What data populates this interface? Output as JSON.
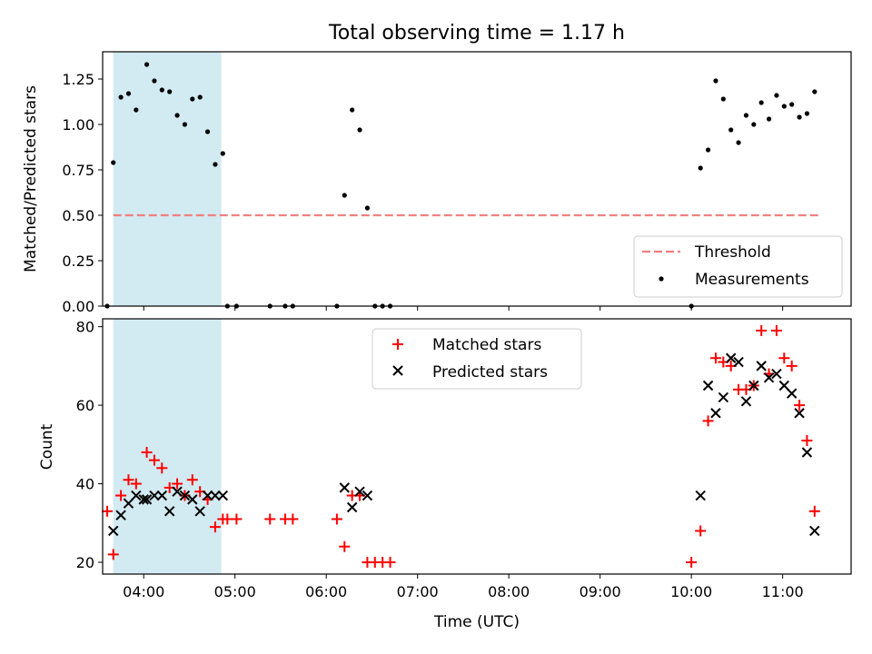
{
  "title": "Total observing time = 1.17 h",
  "chart_data": [
    {
      "type": "scatter",
      "ylabel": "Matched/Predicted stars",
      "xlabel": "",
      "xlim": [
        "03:33",
        "11:45"
      ],
      "ylim": [
        0,
        1.4
      ],
      "yticks": [
        0,
        0.25,
        0.5,
        0.75,
        1.0,
        1.25
      ],
      "ytick_labels": [
        "0.00",
        "0.25",
        "0.50",
        "0.75",
        "1.00",
        "1.25"
      ],
      "shaded_interval": [
        "03:40",
        "04:51"
      ],
      "threshold": {
        "value": 0.5,
        "x_range": [
          "03:40",
          "11:24"
        ]
      },
      "legend": {
        "position": "lower right",
        "entries": [
          "Threshold",
          "Measurements"
        ]
      },
      "series": [
        {
          "name": "Measurements",
          "marker": "dot",
          "color": "#000000",
          "points": [
            [
              "03:36",
              0.0
            ],
            [
              "03:40",
              0.79
            ],
            [
              "03:45",
              1.15
            ],
            [
              "03:50",
              1.17
            ],
            [
              "03:55",
              1.08
            ],
            [
              "04:02",
              1.33
            ],
            [
              "04:07",
              1.24
            ],
            [
              "04:12",
              1.19
            ],
            [
              "04:17",
              1.18
            ],
            [
              "04:22",
              1.05
            ],
            [
              "04:27",
              1.0
            ],
            [
              "04:32",
              1.14
            ],
            [
              "04:37",
              1.15
            ],
            [
              "04:42",
              0.96
            ],
            [
              "04:47",
              0.78
            ],
            [
              "04:52",
              0.84
            ],
            [
              "04:55",
              0.0
            ],
            [
              "05:01",
              0.0
            ],
            [
              "05:23",
              0.0
            ],
            [
              "05:33",
              0.0
            ],
            [
              "05:38",
              0.0
            ],
            [
              "06:07",
              0.0
            ],
            [
              "06:12",
              0.61
            ],
            [
              "06:17",
              1.08
            ],
            [
              "06:22",
              0.97
            ],
            [
              "06:27",
              0.54
            ],
            [
              "06:32",
              0.0
            ],
            [
              "06:37",
              0.0
            ],
            [
              "06:42",
              0.0
            ],
            [
              "10:00",
              0.0
            ],
            [
              "10:06",
              0.76
            ],
            [
              "10:11",
              0.86
            ],
            [
              "10:16",
              1.24
            ],
            [
              "10:21",
              1.14
            ],
            [
              "10:26",
              0.97
            ],
            [
              "10:31",
              0.9
            ],
            [
              "10:36",
              1.05
            ],
            [
              "10:41",
              1.0
            ],
            [
              "10:46",
              1.12
            ],
            [
              "10:51",
              1.03
            ],
            [
              "10:56",
              1.16
            ],
            [
              "11:01",
              1.1
            ],
            [
              "11:06",
              1.11
            ],
            [
              "11:11",
              1.04
            ],
            [
              "11:16",
              1.06
            ],
            [
              "11:21",
              1.18
            ]
          ]
        }
      ]
    },
    {
      "type": "scatter",
      "ylabel": "Count",
      "xlabel": "Time (UTC)",
      "xlim": [
        "03:33",
        "11:45"
      ],
      "ylim": [
        17,
        82
      ],
      "yticks": [
        20,
        40,
        60,
        80
      ],
      "xticks": [
        "04:00",
        "05:00",
        "06:00",
        "07:00",
        "08:00",
        "09:00",
        "10:00",
        "11:00"
      ],
      "shaded_interval": [
        "03:40",
        "04:51"
      ],
      "legend": {
        "position": "upper center",
        "entries": [
          "Matched stars",
          "Predicted stars"
        ]
      },
      "series": [
        {
          "name": "Matched stars",
          "marker": "plus",
          "color": "#ff0000",
          "points": [
            [
              "03:36",
              33
            ],
            [
              "03:40",
              22
            ],
            [
              "03:45",
              37
            ],
            [
              "03:50",
              41
            ],
            [
              "03:55",
              40
            ],
            [
              "04:02",
              48
            ],
            [
              "04:07",
              46
            ],
            [
              "04:12",
              44
            ],
            [
              "04:17",
              39
            ],
            [
              "04:22",
              40
            ],
            [
              "04:27",
              37
            ],
            [
              "04:32",
              41
            ],
            [
              "04:37",
              38
            ],
            [
              "04:42",
              36
            ],
            [
              "04:47",
              29
            ],
            [
              "04:52",
              31
            ],
            [
              "04:55",
              31
            ],
            [
              "05:01",
              31
            ],
            [
              "05:23",
              31
            ],
            [
              "05:33",
              31
            ],
            [
              "05:38",
              31
            ],
            [
              "06:07",
              31
            ],
            [
              "06:12",
              24
            ],
            [
              "06:17",
              37
            ],
            [
              "06:22",
              37
            ],
            [
              "06:27",
              20
            ],
            [
              "06:32",
              20
            ],
            [
              "06:37",
              20
            ],
            [
              "06:42",
              20
            ],
            [
              "10:00",
              20
            ],
            [
              "10:06",
              28
            ],
            [
              "10:11",
              56
            ],
            [
              "10:16",
              72
            ],
            [
              "10:21",
              71
            ],
            [
              "10:26",
              70
            ],
            [
              "10:31",
              64
            ],
            [
              "10:36",
              64
            ],
            [
              "10:41",
              65
            ],
            [
              "10:46",
              79
            ],
            [
              "10:51",
              68
            ],
            [
              "10:56",
              79
            ],
            [
              "11:01",
              72
            ],
            [
              "11:06",
              70
            ],
            [
              "11:11",
              60
            ],
            [
              "11:16",
              51
            ],
            [
              "11:21",
              33
            ]
          ]
        },
        {
          "name": "Predicted stars",
          "marker": "x",
          "color": "#000000",
          "points": [
            [
              "03:40",
              28
            ],
            [
              "03:45",
              32
            ],
            [
              "03:50",
              35
            ],
            [
              "03:55",
              37
            ],
            [
              "04:00",
              36
            ],
            [
              "04:02",
              36
            ],
            [
              "04:07",
              37
            ],
            [
              "04:12",
              37
            ],
            [
              "04:17",
              33
            ],
            [
              "04:22",
              38
            ],
            [
              "04:27",
              37
            ],
            [
              "04:32",
              36
            ],
            [
              "04:37",
              33
            ],
            [
              "04:42",
              37
            ],
            [
              "04:47",
              37
            ],
            [
              "04:52",
              37
            ],
            [
              "06:12",
              39
            ],
            [
              "06:17",
              34
            ],
            [
              "06:22",
              38
            ],
            [
              "06:27",
              37
            ],
            [
              "10:06",
              37
            ],
            [
              "10:11",
              65
            ],
            [
              "10:16",
              58
            ],
            [
              "10:21",
              62
            ],
            [
              "10:26",
              72
            ],
            [
              "10:31",
              71
            ],
            [
              "10:36",
              61
            ],
            [
              "10:41",
              65
            ],
            [
              "10:46",
              70
            ],
            [
              "10:51",
              67
            ],
            [
              "10:56",
              68
            ],
            [
              "11:01",
              65
            ],
            [
              "11:06",
              63
            ],
            [
              "11:11",
              58
            ],
            [
              "11:16",
              48
            ],
            [
              "11:21",
              28
            ]
          ]
        }
      ]
    }
  ],
  "colors": {
    "shade": "#add8e6",
    "threshold": "#f08080",
    "matched": "#ff0000",
    "predicted": "#000000",
    "measurement": "#000000"
  }
}
